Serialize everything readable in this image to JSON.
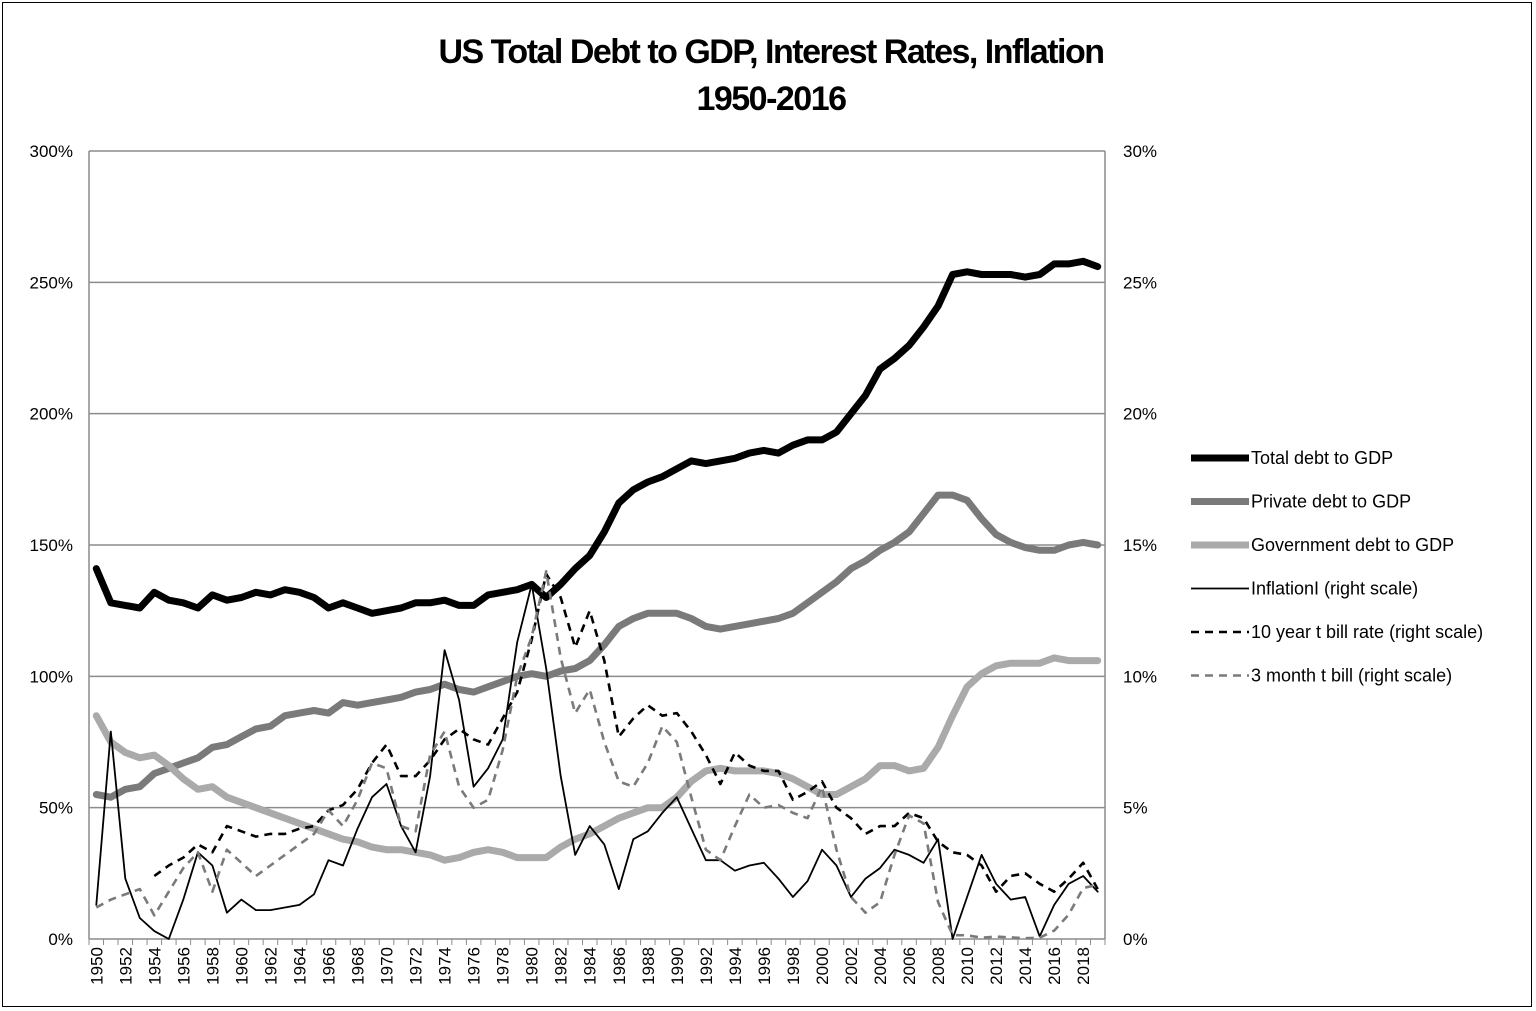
{
  "chart_data": {
    "type": "line",
    "title": [
      "US Total Debt to GDP, Interest Rates, Inflation",
      "1950-2016"
    ],
    "xlabel": "",
    "ylabel": "",
    "y_left": {
      "range": [
        0,
        300
      ],
      "ticks": [
        "0%",
        "50%",
        "100%",
        "150%",
        "200%",
        "250%",
        "300%"
      ]
    },
    "y_right": {
      "range": [
        0,
        30
      ],
      "ticks": [
        "0%",
        "5%",
        "10%",
        "15%",
        "20%",
        "25%",
        "30%"
      ]
    },
    "x": [
      1950,
      1951,
      1952,
      1953,
      1954,
      1955,
      1956,
      1957,
      1958,
      1959,
      1960,
      1961,
      1962,
      1963,
      1964,
      1965,
      1966,
      1967,
      1968,
      1969,
      1970,
      1971,
      1972,
      1973,
      1974,
      1975,
      1976,
      1977,
      1978,
      1979,
      1980,
      1981,
      1982,
      1983,
      1984,
      1985,
      1986,
      1987,
      1988,
      1989,
      1990,
      1991,
      1992,
      1993,
      1994,
      1995,
      1996,
      1997,
      1998,
      1999,
      2000,
      2001,
      2002,
      2003,
      2004,
      2005,
      2006,
      2007,
      2008,
      2009,
      2010,
      2011,
      2012,
      2013,
      2014,
      2015,
      2016,
      2017,
      2018,
      2019
    ],
    "x_tick_labels": [
      "1950",
      "1952",
      "1954",
      "1956",
      "1958",
      "1960",
      "1962",
      "1964",
      "1966",
      "1968",
      "1970",
      "1972",
      "1974",
      "1976",
      "1978",
      "1980",
      "1982",
      "1984",
      "1986",
      "1988",
      "1990",
      "1992",
      "1994",
      "1996",
      "1998",
      "2000",
      "2002",
      "2004",
      "2006",
      "2008",
      "2010",
      "2012",
      "2014",
      "2016",
      "2018"
    ],
    "grid": true,
    "legend_position": "right",
    "series": [
      {
        "name": "Total debt to GDP",
        "axis": "left",
        "color": "#000000",
        "width": 7,
        "dash": "",
        "values": [
          141,
          128,
          127,
          126,
          132,
          129,
          128,
          126,
          131,
          129,
          130,
          132,
          131,
          133,
          132,
          130,
          126,
          128,
          126,
          124,
          125,
          126,
          128,
          128,
          129,
          127,
          127,
          131,
          132,
          133,
          135,
          130,
          135,
          141,
          146,
          155,
          166,
          171,
          174,
          176,
          179,
          182,
          181,
          182,
          183,
          185,
          186,
          185,
          188,
          190,
          190,
          193,
          200,
          207,
          217,
          221,
          226,
          233,
          241,
          253,
          254,
          253,
          253,
          253,
          252,
          253,
          257,
          257,
          258,
          256
        ]
      },
      {
        "name": "Private debt to GDP",
        "axis": "left",
        "color": "#7a7a7a",
        "width": 7,
        "dash": "",
        "values": [
          55,
          54,
          57,
          58,
          63,
          65,
          67,
          69,
          73,
          74,
          77,
          80,
          81,
          85,
          86,
          87,
          86,
          90,
          89,
          90,
          91,
          92,
          94,
          95,
          97,
          95,
          94,
          96,
          98,
          100,
          101,
          100,
          102,
          103,
          106,
          112,
          119,
          122,
          124,
          124,
          124,
          122,
          119,
          118,
          119,
          120,
          121,
          122,
          124,
          128,
          132,
          136,
          141,
          144,
          148,
          151,
          155,
          162,
          169,
          169,
          167,
          160,
          154,
          151,
          149,
          148,
          148,
          150,
          151,
          150
        ]
      },
      {
        "name": "Government debt to GDP",
        "axis": "left",
        "color": "#aaaaaa",
        "width": 7,
        "dash": "",
        "values": [
          85,
          75,
          71,
          69,
          70,
          66,
          61,
          57,
          58,
          54,
          52,
          50,
          48,
          46,
          44,
          42,
          40,
          38,
          37,
          35,
          34,
          34,
          33,
          32,
          30,
          31,
          33,
          34,
          33,
          31,
          31,
          31,
          35,
          38,
          40,
          43,
          46,
          48,
          50,
          50,
          54,
          60,
          64,
          65,
          64,
          64,
          64,
          63,
          61,
          58,
          55,
          55,
          58,
          61,
          66,
          66,
          64,
          65,
          73,
          85,
          96,
          101,
          104,
          105,
          105,
          105,
          107,
          106,
          106,
          106
        ]
      },
      {
        "name": "InflationI (right scale)",
        "axis": "right",
        "color": "#000000",
        "width": 1.8,
        "dash": "",
        "values": [
          1.3,
          7.9,
          2.3,
          0.8,
          0.3,
          -0.4,
          1.5,
          3.3,
          2.8,
          1.0,
          1.5,
          1.1,
          1.1,
          1.2,
          1.3,
          1.7,
          3.0,
          2.8,
          4.2,
          5.4,
          5.9,
          4.3,
          3.3,
          6.2,
          11.0,
          9.1,
          5.8,
          6.5,
          7.6,
          11.3,
          13.5,
          10.3,
          6.2,
          3.2,
          4.3,
          3.6,
          1.9,
          3.8,
          4.1,
          4.8,
          5.4,
          4.2,
          3.0,
          3.0,
          2.6,
          2.8,
          2.9,
          2.3,
          1.6,
          2.2,
          3.4,
          2.8,
          1.6,
          2.3,
          2.7,
          3.4,
          3.2,
          2.9,
          3.8,
          -0.4,
          1.6,
          3.2,
          2.1,
          1.5,
          1.6,
          0.1,
          1.3,
          2.1,
          2.4,
          1.8
        ]
      },
      {
        "name": "10 year t bill rate (right scale)",
        "axis": "right",
        "color": "#000000",
        "width": 2.6,
        "dash": "8,6",
        "values": [
          null,
          null,
          null,
          null,
          2.4,
          2.8,
          3.1,
          3.6,
          3.3,
          4.3,
          4.1,
          3.9,
          4.0,
          4.0,
          4.2,
          4.3,
          4.9,
          5.1,
          5.7,
          6.7,
          7.4,
          6.2,
          6.2,
          6.8,
          7.6,
          8.0,
          7.6,
          7.4,
          8.4,
          9.4,
          11.4,
          13.9,
          13.0,
          11.1,
          12.5,
          10.6,
          7.7,
          8.4,
          8.9,
          8.5,
          8.6,
          7.9,
          7.0,
          5.9,
          7.1,
          6.6,
          6.4,
          6.4,
          5.3,
          5.6,
          6.0,
          5.0,
          4.6,
          4.0,
          4.3,
          4.3,
          4.8,
          4.6,
          3.7,
          3.3,
          3.2,
          2.8,
          1.8,
          2.4,
          2.5,
          2.1,
          1.8,
          2.3,
          2.9,
          1.9
        ]
      },
      {
        "name": "3 month t bill (right scale)",
        "axis": "right",
        "color": "#7a7a7a",
        "width": 2.6,
        "dash": "8,6",
        "values": [
          1.2,
          1.5,
          1.7,
          1.9,
          0.9,
          1.8,
          2.7,
          3.3,
          1.8,
          3.4,
          2.9,
          2.4,
          2.8,
          3.2,
          3.6,
          4.0,
          4.9,
          4.3,
          5.3,
          6.7,
          6.5,
          4.3,
          4.1,
          7.0,
          7.9,
          5.8,
          5.0,
          5.3,
          7.2,
          10.0,
          11.5,
          14.0,
          10.7,
          8.6,
          9.5,
          7.5,
          6.0,
          5.8,
          6.7,
          8.1,
          7.5,
          5.4,
          3.4,
          3.0,
          4.3,
          5.5,
          5.0,
          5.1,
          4.8,
          4.6,
          5.8,
          3.4,
          1.6,
          1.0,
          1.4,
          3.2,
          4.7,
          4.4,
          1.4,
          0.15,
          0.14,
          0.05,
          0.09,
          0.06,
          0.03,
          0.05,
          0.32,
          0.93,
          1.94,
          2.06
        ]
      }
    ]
  }
}
